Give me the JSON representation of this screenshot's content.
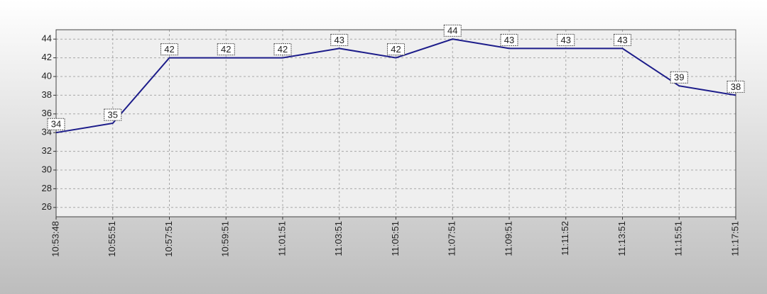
{
  "chart_data": {
    "type": "line",
    "categories": [
      "10:53:48",
      "10:55:51",
      "10:57:51",
      "10:59:51",
      "11:01:51",
      "11:03:51",
      "11:05:51",
      "11:07:51",
      "11:09:51",
      "11:11:52",
      "11:13:51",
      "11:15:51",
      "11:17:51"
    ],
    "series": [
      {
        "color": "#1c1c8a",
        "values": [
          34,
          35,
          42,
          42,
          42,
          43,
          42,
          44,
          43,
          43,
          43,
          39,
          38
        ]
      }
    ],
    "ylim": [
      25,
      45
    ],
    "yticks": [
      26,
      28,
      30,
      32,
      34,
      36,
      38,
      40,
      42,
      44
    ],
    "grid": true
  }
}
